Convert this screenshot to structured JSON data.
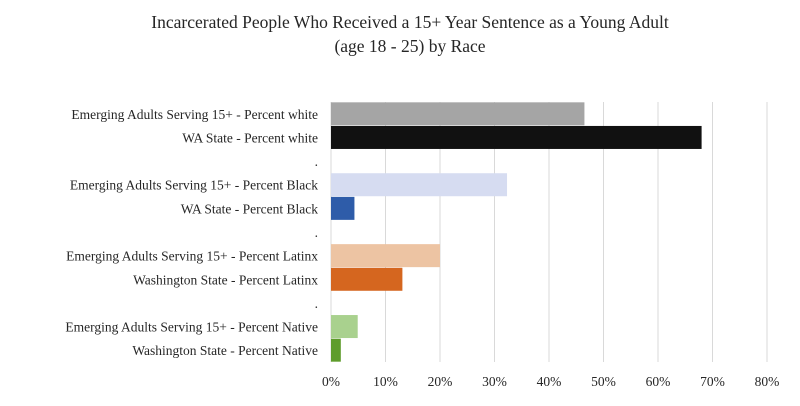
{
  "chart_data": {
    "type": "bar",
    "orientation": "horizontal",
    "title_lines": [
      "Incarcerated People Who Received a 15+ Year Sentence as a Young Adult",
      "(age 18 - 25) by Race"
    ],
    "xlim": [
      0,
      80
    ],
    "x_ticks": [
      "0%",
      "10%",
      "20%",
      "30%",
      "40%",
      "50%",
      "60%",
      "70%",
      "80%"
    ],
    "grid": "vertical",
    "legend": "none",
    "categories": [
      "Emerging Adults Serving 15+ - Percent white",
      "WA State - Percent white",
      ".",
      "Emerging Adults Serving 15+ - Percent Black",
      "WA State - Percent Black",
      ".",
      "Emerging Adults Serving 15+ - Percent Latinx",
      "Washington State - Percent Latinx",
      ".",
      "Emerging Adults Serving 15+ - Percent Native",
      "Washington State - Percent Native"
    ],
    "values": [
      46.5,
      68,
      null,
      32.3,
      4.3,
      null,
      20,
      13.1,
      null,
      4.9,
      1.8
    ],
    "colors": [
      "#a5a5a5",
      "#111111",
      null,
      "#d6dcf1",
      "#2e5ca9",
      null,
      "#edc4a3",
      "#d5661f",
      null,
      "#a9d18e",
      "#5e9c2b"
    ]
  }
}
